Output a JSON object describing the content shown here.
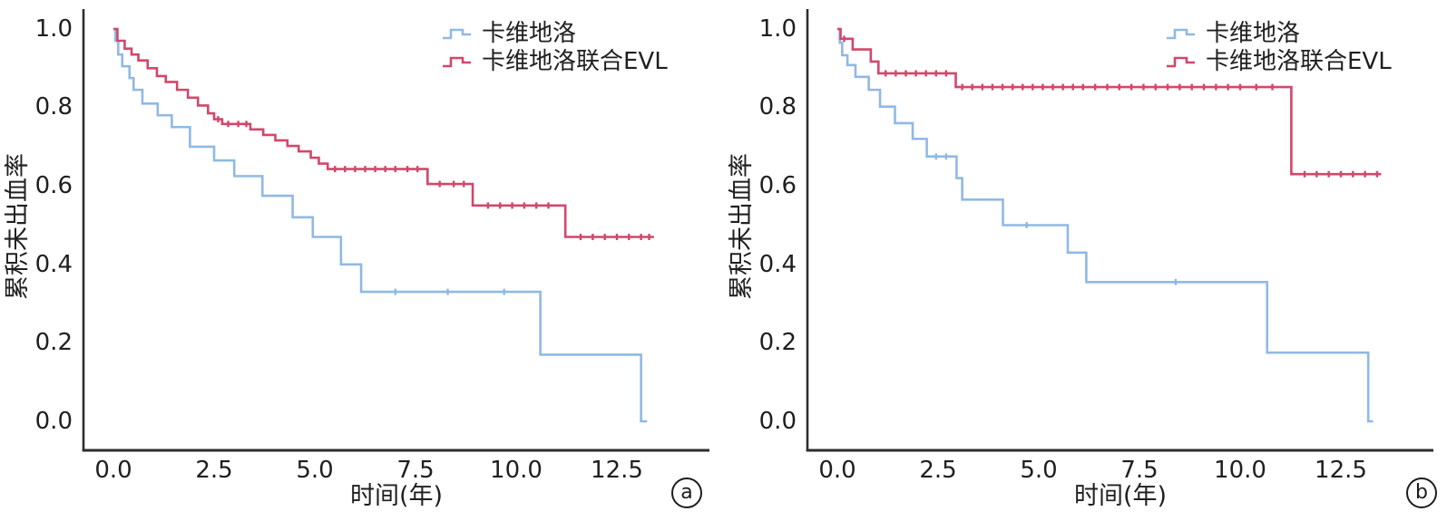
{
  "figure": {
    "background": "#ffffff",
    "axis_color": "#2e2e2e",
    "text_color": "#1f1f1f"
  },
  "chart_data": [
    {
      "type": "line",
      "subtype": "kaplan-meier-step",
      "panel_label": "a",
      "title": "",
      "xlabel": "时间(年)",
      "ylabel": "累积未出血率",
      "xlim": [
        0,
        13.75
      ],
      "ylim": [
        0.0,
        1.0
      ],
      "grid": false,
      "legend_position": "top-right",
      "x_tick_labels": [
        "0.0",
        "2.5",
        "5.0",
        "7.5",
        "10.0",
        "12.5"
      ],
      "y_tick_labels": [
        "1.0",
        "0.8",
        "0.6",
        "0.4",
        "0.2",
        "0.0"
      ],
      "series": [
        {
          "name": "卡维地洛",
          "color": "#90b9e4",
          "start": [
            0,
            1.0
          ],
          "steps": [
            [
              0.05,
              0.97
            ],
            [
              0.12,
              0.935
            ],
            [
              0.22,
              0.905
            ],
            [
              0.4,
              0.875
            ],
            [
              0.5,
              0.845
            ],
            [
              0.72,
              0.81
            ],
            [
              1.1,
              0.78
            ],
            [
              1.45,
              0.75
            ],
            [
              1.9,
              0.7
            ],
            [
              2.5,
              0.665
            ],
            [
              3.0,
              0.625
            ],
            [
              3.7,
              0.575
            ],
            [
              4.45,
              0.52
            ],
            [
              4.95,
              0.47
            ],
            [
              5.65,
              0.4
            ],
            [
              6.15,
              0.33
            ],
            [
              10.6,
              0.17
            ],
            [
              13.1,
              0.0
            ]
          ],
          "end_t": 13.25,
          "censor_t": [
            7.0,
            8.3,
            9.7
          ]
        },
        {
          "name": "卡维地洛联合EVL",
          "color": "#d2476b",
          "start": [
            0,
            1.0
          ],
          "steps": [
            [
              0.1,
              0.97
            ],
            [
              0.28,
              0.95
            ],
            [
              0.45,
              0.935
            ],
            [
              0.62,
              0.92
            ],
            [
              0.85,
              0.9
            ],
            [
              1.08,
              0.88
            ],
            [
              1.3,
              0.865
            ],
            [
              1.58,
              0.845
            ],
            [
              1.85,
              0.825
            ],
            [
              2.1,
              0.805
            ],
            [
              2.35,
              0.785
            ],
            [
              2.5,
              0.77
            ],
            [
              2.7,
              0.758
            ],
            [
              3.4,
              0.744
            ],
            [
              3.72,
              0.73
            ],
            [
              4.02,
              0.716
            ],
            [
              4.32,
              0.702
            ],
            [
              4.6,
              0.688
            ],
            [
              4.9,
              0.672
            ],
            [
              5.1,
              0.657
            ],
            [
              5.32,
              0.643
            ],
            [
              7.8,
              0.605
            ],
            [
              8.92,
              0.55
            ],
            [
              11.22,
              0.47
            ]
          ],
          "end_t": 13.42,
          "censor_t": [
            2.6,
            2.85,
            3.1,
            3.3,
            5.5,
            5.75,
            6.0,
            6.25,
            6.5,
            6.75,
            7.0,
            7.3,
            7.55,
            8.1,
            8.45,
            8.7,
            9.3,
            9.6,
            9.9,
            10.2,
            10.5,
            10.8,
            11.6,
            11.9,
            12.2,
            12.5,
            12.8,
            13.1,
            13.3
          ]
        }
      ]
    },
    {
      "type": "line",
      "subtype": "kaplan-meier-step",
      "panel_label": "b",
      "title": "",
      "xlabel": "时间(年)",
      "ylabel": "累积未出血率",
      "xlim": [
        0,
        13.75
      ],
      "ylim": [
        0.0,
        1.0
      ],
      "grid": false,
      "legend_position": "top-right",
      "x_tick_labels": [
        "0.0",
        "2.5",
        "5.0",
        "7.5",
        "10.0",
        "12.5"
      ],
      "y_tick_labels": [
        "1.0",
        "0.8",
        "0.6",
        "0.4",
        "0.2",
        "0.0"
      ],
      "series": [
        {
          "name": "卡维地洛",
          "color": "#90b9e4",
          "start": [
            0,
            1.0
          ],
          "steps": [
            [
              0.06,
              0.965
            ],
            [
              0.12,
              0.933
            ],
            [
              0.25,
              0.908
            ],
            [
              0.45,
              0.878
            ],
            [
              0.78,
              0.845
            ],
            [
              1.06,
              0.802
            ],
            [
              1.43,
              0.76
            ],
            [
              1.87,
              0.72
            ],
            [
              2.22,
              0.675
            ],
            [
              2.96,
              0.62
            ],
            [
              3.1,
              0.565
            ],
            [
              4.11,
              0.5
            ],
            [
              5.72,
              0.43
            ],
            [
              6.18,
              0.355
            ],
            [
              10.67,
              0.175
            ],
            [
              13.18,
              0.0
            ]
          ],
          "end_t": 13.3,
          "censor_t": [
            2.45,
            2.7,
            4.7,
            8.4
          ]
        },
        {
          "name": "卡维地洛联合EVL",
          "color": "#d2476b",
          "start": [
            0,
            1.0
          ],
          "steps": [
            [
              0.08,
              0.975
            ],
            [
              0.38,
              0.948
            ],
            [
              0.83,
              0.917
            ],
            [
              1.02,
              0.887
            ],
            [
              2.94,
              0.852
            ],
            [
              11.27,
              0.63
            ]
          ],
          "end_t": 13.5,
          "censor_t": [
            0.17,
            1.2,
            1.45,
            1.7,
            1.95,
            2.2,
            2.45,
            2.7,
            3.1,
            3.35,
            3.6,
            3.85,
            4.1,
            4.35,
            4.6,
            4.85,
            5.1,
            5.35,
            5.6,
            5.85,
            6.1,
            6.4,
            6.7,
            7.0,
            7.3,
            7.6,
            7.9,
            8.2,
            8.5,
            8.8,
            9.1,
            9.4,
            9.7,
            10.0,
            10.4,
            10.8,
            11.6,
            11.9,
            12.2,
            12.5,
            12.8,
            13.1,
            13.4
          ]
        }
      ]
    }
  ]
}
